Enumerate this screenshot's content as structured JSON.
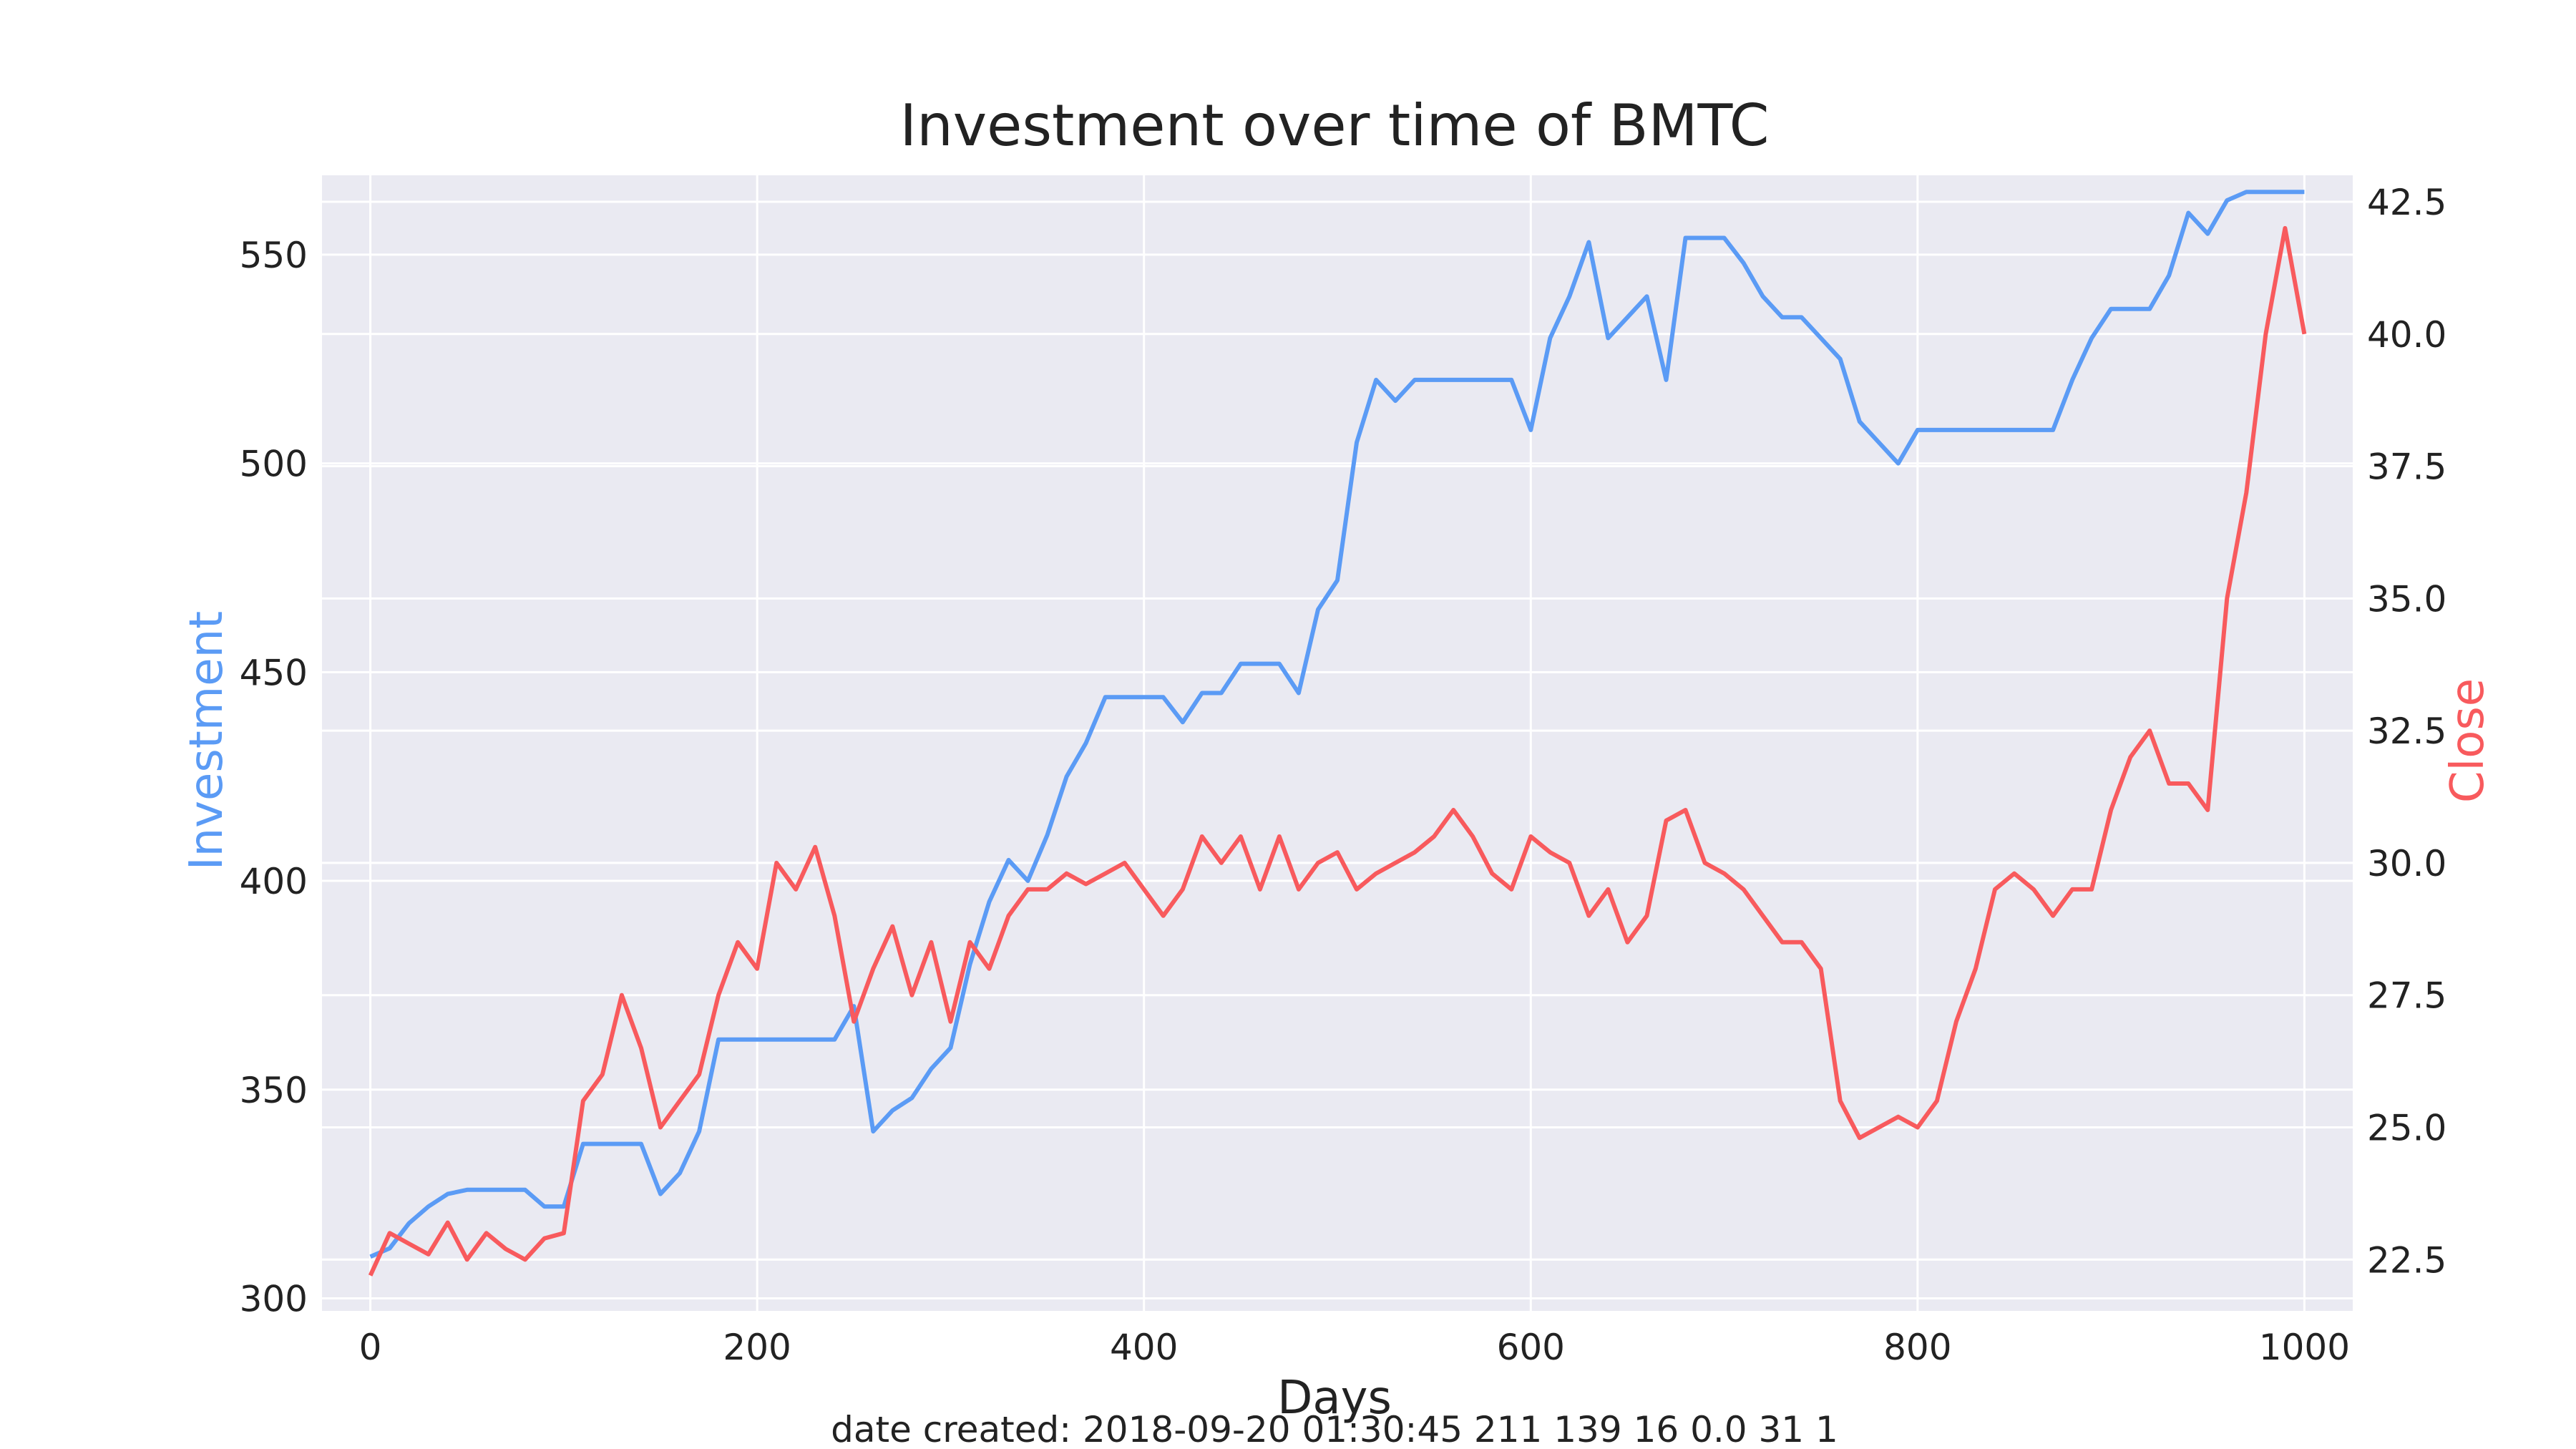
{
  "chart_data": {
    "type": "line",
    "title": "Investment over time of BMTC",
    "xlabel": "Days",
    "ylabel_left": "Investment",
    "ylabel_right": "Close",
    "footer": "date created: 2018-09-20 01:30:45 211 139 16 0.0 31 1",
    "xlim": [
      -25,
      1025
    ],
    "ylim_left": [
      297,
      569
    ],
    "ylim_right": [
      21.53,
      43.0
    ],
    "x_ticks": [
      0,
      200,
      400,
      600,
      800,
      1000
    ],
    "x_tick_labels": [
      "0",
      "200",
      "400",
      "600",
      "800",
      "1000"
    ],
    "y_left_ticks": [
      300,
      350,
      400,
      450,
      500,
      550
    ],
    "y_left_tick_labels": [
      "300",
      "350",
      "400",
      "450",
      "500",
      "550"
    ],
    "y_right_ticks": [
      22.5,
      25.0,
      27.5,
      30.0,
      32.5,
      35.0,
      37.5,
      40.0,
      42.5
    ],
    "y_right_tick_labels": [
      "22.5",
      "25.0",
      "27.5",
      "30.0",
      "32.5",
      "35.0",
      "37.5",
      "40.0",
      "42.5"
    ],
    "grid": true,
    "colors": {
      "investment": "#5b9bf5",
      "close": "#f85a5d",
      "background": "#eaeaf2",
      "grid": "#ffffff",
      "text": "#222222"
    },
    "series": [
      {
        "axis": "left",
        "color": "#5b9bf5",
        "x": [
          0,
          10,
          20,
          30,
          40,
          50,
          60,
          70,
          80,
          90,
          100,
          110,
          120,
          130,
          140,
          150,
          160,
          170,
          180,
          190,
          200,
          210,
          220,
          230,
          240,
          250,
          260,
          270,
          280,
          290,
          300,
          310,
          320,
          330,
          340,
          350,
          360,
          370,
          380,
          390,
          400,
          410,
          420,
          430,
          440,
          450,
          460,
          470,
          480,
          490,
          500,
          510,
          520,
          530,
          540,
          550,
          560,
          570,
          580,
          590,
          600,
          610,
          620,
          630,
          640,
          650,
          660,
          670,
          680,
          690,
          700,
          710,
          720,
          730,
          740,
          750,
          760,
          770,
          780,
          790,
          800,
          810,
          820,
          830,
          840,
          850,
          860,
          870,
          880,
          890,
          900,
          910,
          920,
          930,
          940,
          950,
          960,
          970,
          980,
          990,
          1000
        ],
        "y": [
          310,
          312,
          318,
          322,
          325,
          326,
          326,
          326,
          326,
          322,
          322,
          337,
          337,
          337,
          337,
          325,
          330,
          340,
          362,
          362,
          362,
          362,
          362,
          362,
          362,
          370,
          340,
          345,
          348,
          355,
          360,
          380,
          395,
          405,
          400,
          411,
          425,
          433,
          444,
          444,
          444,
          444,
          438,
          445,
          445,
          452,
          452,
          452,
          445,
          465,
          472,
          505,
          520,
          515,
          520,
          520,
          520,
          520,
          520,
          520,
          508,
          530,
          540,
          553,
          530,
          535,
          540,
          520,
          554,
          554,
          554,
          548,
          540,
          535,
          535,
          530,
          525,
          510,
          505,
          500,
          508,
          508,
          508,
          508,
          508,
          508,
          508,
          508,
          520,
          530,
          537,
          537,
          537,
          545,
          560,
          555,
          563,
          565,
          565,
          565,
          565
        ]
      },
      {
        "axis": "right",
        "color": "#f85a5d",
        "x": [
          0,
          10,
          20,
          30,
          40,
          50,
          60,
          70,
          80,
          90,
          100,
          110,
          120,
          130,
          140,
          150,
          160,
          170,
          180,
          190,
          200,
          210,
          220,
          230,
          240,
          250,
          260,
          270,
          280,
          290,
          300,
          310,
          320,
          330,
          340,
          350,
          360,
          370,
          380,
          390,
          400,
          410,
          420,
          430,
          440,
          450,
          460,
          470,
          480,
          490,
          500,
          510,
          520,
          530,
          540,
          550,
          560,
          570,
          580,
          590,
          600,
          610,
          620,
          630,
          640,
          650,
          660,
          670,
          680,
          690,
          700,
          710,
          720,
          730,
          740,
          750,
          760,
          770,
          780,
          790,
          800,
          810,
          820,
          830,
          840,
          850,
          860,
          870,
          880,
          890,
          900,
          910,
          920,
          930,
          940,
          950,
          960,
          970,
          980,
          990,
          1000
        ],
        "y": [
          22.2,
          23.0,
          22.8,
          22.6,
          23.2,
          22.5,
          23.0,
          22.7,
          22.5,
          22.9,
          23.0,
          25.5,
          26.0,
          27.5,
          26.5,
          25.0,
          25.5,
          26.0,
          27.5,
          28.5,
          28.0,
          30.0,
          29.5,
          30.3,
          29.0,
          27.0,
          28.0,
          28.8,
          27.5,
          28.5,
          27.0,
          28.5,
          28.0,
          29.0,
          29.5,
          29.5,
          29.8,
          29.6,
          29.8,
          30.0,
          29.5,
          29.0,
          29.5,
          30.5,
          30.0,
          30.5,
          29.5,
          30.5,
          29.5,
          30.0,
          30.2,
          29.5,
          29.8,
          30.0,
          30.2,
          30.5,
          31.0,
          30.5,
          29.8,
          29.5,
          30.5,
          30.2,
          30.0,
          29.0,
          29.5,
          28.5,
          29.0,
          30.8,
          31.0,
          30.0,
          29.8,
          29.5,
          29.0,
          28.5,
          28.5,
          28.0,
          25.5,
          24.8,
          25.0,
          25.2,
          25.0,
          25.5,
          27.0,
          28.0,
          29.5,
          29.8,
          29.5,
          29.0,
          29.5,
          29.5,
          31.0,
          32.0,
          32.5,
          31.5,
          31.5,
          31.0,
          35.0,
          37.0,
          40.0,
          42.0,
          40.0
        ]
      }
    ]
  }
}
